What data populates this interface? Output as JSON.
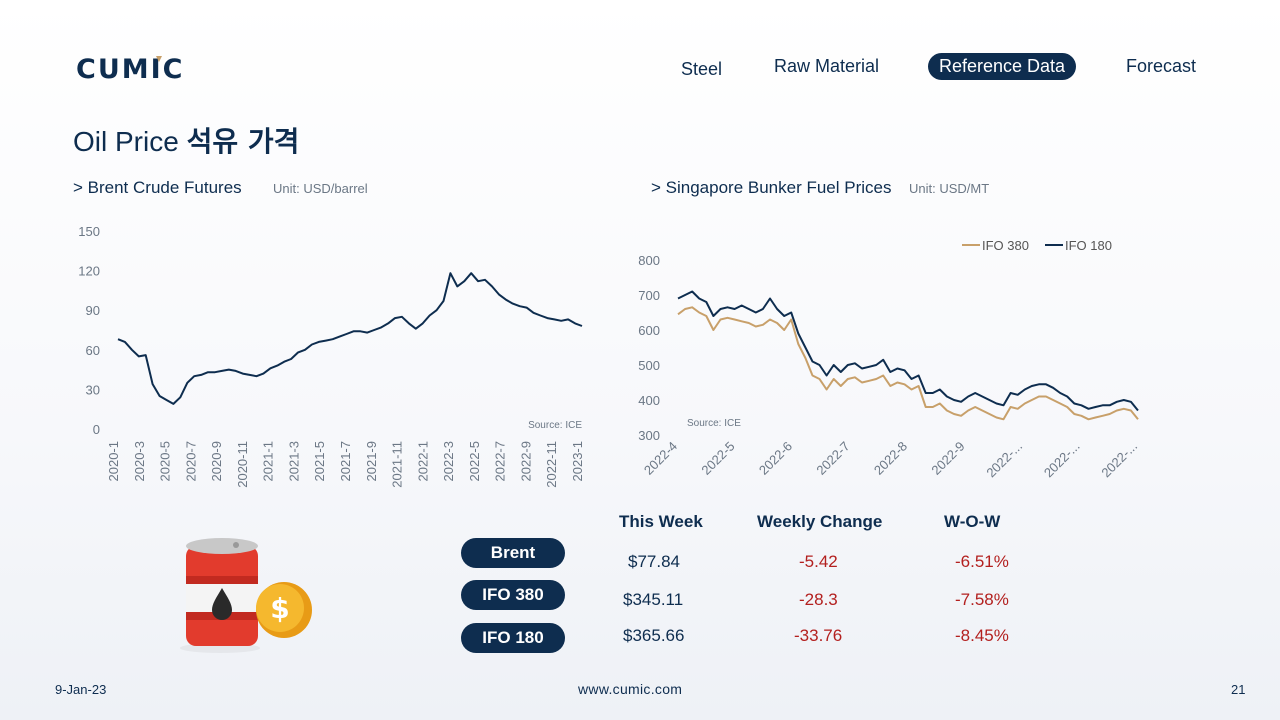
{
  "header": {
    "logo_text": "CUMIC",
    "nav": [
      {
        "label": "Steel",
        "active": false
      },
      {
        "label": "Raw Material",
        "active": false
      },
      {
        "label": "Reference Data",
        "active": true
      },
      {
        "label": "Forecast",
        "active": false
      }
    ]
  },
  "page": {
    "title_en": "Oil Price",
    "title_ko": "석유 가격"
  },
  "brent_section": {
    "label": "> Brent Crude Futures",
    "unit": "Unit: USD/barrel"
  },
  "bunker_section": {
    "label": "> Singapore Bunker Fuel Prices",
    "unit": "Unit: USD/MT"
  },
  "colors": {
    "navy": "#0e2d4f",
    "gold": "#c8a06a",
    "negative": "#b3201f"
  },
  "chart_data": [
    {
      "type": "line",
      "title": "",
      "xlabel": "",
      "ylabel": "",
      "ylim": [
        0,
        150
      ],
      "yticks": [
        0,
        30,
        60,
        90,
        120,
        150
      ],
      "x_tick_labels": [
        "2020-1",
        "2020-3",
        "2020-5",
        "2020-7",
        "2020-9",
        "2020-11",
        "2021-1",
        "2021-3",
        "2021-5",
        "2021-7",
        "2021-9",
        "2021-11",
        "2022-1",
        "2022-3",
        "2022-5",
        "2022-7",
        "2022-9",
        "2022-11",
        "2023-1"
      ],
      "grid": false,
      "source": "Source: ICE",
      "series": [
        {
          "values": [
            68,
            66,
            60,
            55,
            56,
            34,
            25,
            22,
            19,
            24,
            35,
            40,
            41,
            43,
            43,
            44,
            45,
            44,
            42,
            41,
            40,
            42,
            46,
            48,
            51,
            53,
            58,
            60,
            64,
            66,
            67,
            68,
            70,
            72,
            74,
            74,
            73,
            75,
            77,
            80,
            84,
            85,
            80,
            76,
            80,
            86,
            90,
            97,
            118,
            108,
            112,
            118,
            112,
            113,
            108,
            102,
            98,
            95,
            93,
            92,
            88,
            86,
            84,
            83,
            82,
            83,
            80,
            78
          ]
        }
      ]
    },
    {
      "type": "line",
      "title": "",
      "xlabel": "",
      "ylabel": "",
      "ylim": [
        300,
        800
      ],
      "yticks": [
        300,
        400,
        500,
        600,
        700,
        800
      ],
      "x_tick_labels": [
        "2022-4",
        "2022-5",
        "2022-6",
        "2022-7",
        "2022-8",
        "2022-9",
        "2022-...",
        "2022-...",
        "2022-..."
      ],
      "grid": false,
      "legend_position": "top-right",
      "source": "Source: ICE",
      "series": [
        {
          "name": "IFO 380",
          "color": "#c8a06a",
          "values": [
            645,
            660,
            665,
            650,
            640,
            600,
            630,
            635,
            630,
            625,
            620,
            610,
            615,
            630,
            620,
            600,
            630,
            560,
            520,
            470,
            460,
            430,
            460,
            440,
            460,
            465,
            450,
            455,
            460,
            470,
            440,
            450,
            445,
            430,
            440,
            380,
            380,
            390,
            370,
            360,
            355,
            370,
            380,
            370,
            360,
            350,
            345,
            380,
            375,
            390,
            400,
            410,
            410,
            400,
            390,
            380,
            360,
            355,
            345,
            350,
            355,
            360,
            370,
            375,
            370,
            345
          ]
        },
        {
          "name": "IFO 180",
          "color": "#0e2d4f",
          "values": [
            690,
            700,
            710,
            690,
            680,
            640,
            660,
            665,
            660,
            670,
            660,
            650,
            660,
            690,
            660,
            640,
            650,
            590,
            550,
            510,
            500,
            470,
            500,
            480,
            500,
            505,
            490,
            495,
            500,
            515,
            480,
            490,
            485,
            460,
            470,
            420,
            420,
            430,
            410,
            400,
            395,
            410,
            420,
            410,
            400,
            390,
            385,
            420,
            415,
            430,
            440,
            445,
            445,
            435,
            420,
            410,
            390,
            385,
            375,
            380,
            385,
            385,
            395,
            400,
            395,
            370
          ]
        }
      ]
    }
  ],
  "table": {
    "headers": [
      "This Week",
      "Weekly Change",
      "W-O-W"
    ],
    "rows": [
      {
        "label": "Brent",
        "price": "$77.84",
        "change": "-5.42",
        "wow": "-6.51%"
      },
      {
        "label": "IFO 380",
        "price": "$345.11",
        "change": "-28.3",
        "wow": "-7.58%"
      },
      {
        "label": "IFO 180",
        "price": "$365.66",
        "change": "-33.76",
        "wow": "-8.45%"
      }
    ]
  },
  "footer": {
    "date": "9-Jan-23",
    "url": "www.cumic.com",
    "page_number": "21"
  }
}
